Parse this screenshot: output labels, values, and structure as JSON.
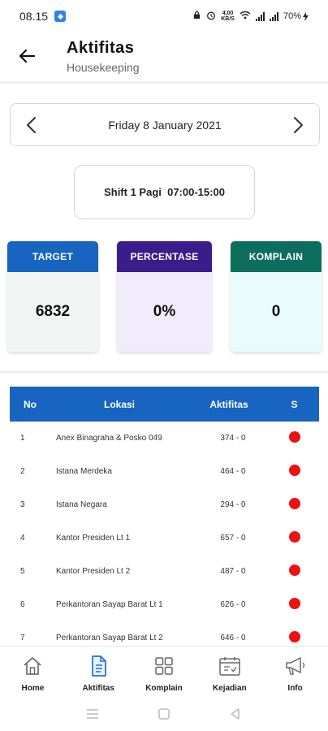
{
  "status_bar": {
    "time": "08.15",
    "net_speed": "4,00",
    "net_unit": "KB/S",
    "battery": "70%"
  },
  "header": {
    "title": "Aktifitas",
    "subtitle": "Housekeeping"
  },
  "date_selector": {
    "label": "Friday 8 January 2021"
  },
  "shift": {
    "label": "Shift 1 Pagi  07:00-15:00"
  },
  "stats": {
    "target": {
      "label": "TARGET",
      "value": "6832",
      "header_color": "#1765c1",
      "body_color": "#f3f5f5"
    },
    "percentase": {
      "label": "PERCENTASE",
      "value": "0%",
      "header_color": "#3a1d8a",
      "body_color": "#f1ecfb"
    },
    "komplain": {
      "label": "KOMPLAIN",
      "value": "0",
      "header_color": "#0e6e5e",
      "body_color": "#e9fbfb"
    }
  },
  "table": {
    "headers": {
      "no": "No",
      "lokasi": "Lokasi",
      "aktifitas": "Aktifitas",
      "s": "S"
    },
    "rows": [
      {
        "no": "1",
        "lokasi": "Anex Binagraha & Posko 049",
        "aktifitas": "374 - 0",
        "status": "red"
      },
      {
        "no": "2",
        "lokasi": "Istana Merdeka",
        "aktifitas": "464 - 0",
        "status": "red"
      },
      {
        "no": "3",
        "lokasi": "Istana Negara",
        "aktifitas": "294 - 0",
        "status": "red"
      },
      {
        "no": "4",
        "lokasi": "Kantor Presiden Lt 1",
        "aktifitas": "657 - 0",
        "status": "red"
      },
      {
        "no": "5",
        "lokasi": "Kantor Presiden Lt 2",
        "aktifitas": "487 - 0",
        "status": "red"
      },
      {
        "no": "6",
        "lokasi": "Perkantoran Sayap Barat Lt 1",
        "aktifitas": "626 - 0",
        "status": "red"
      },
      {
        "no": "7",
        "lokasi": "Perkantoran Sayap Barat Lt 2",
        "aktifitas": "646 - 0",
        "status": "red"
      }
    ]
  },
  "bottom_nav": {
    "items": [
      {
        "label": "Home",
        "icon": "home-icon"
      },
      {
        "label": "Aktifitas",
        "icon": "document-icon",
        "active": true
      },
      {
        "label": "Komplain",
        "icon": "grid-icon"
      },
      {
        "label": "Kejadian",
        "icon": "calendar-icon"
      },
      {
        "label": "Info",
        "icon": "megaphone-icon"
      }
    ]
  },
  "colors": {
    "accent": "#1765c1",
    "status_red": "#ee1111",
    "active_nav": "#1e6fd9"
  }
}
